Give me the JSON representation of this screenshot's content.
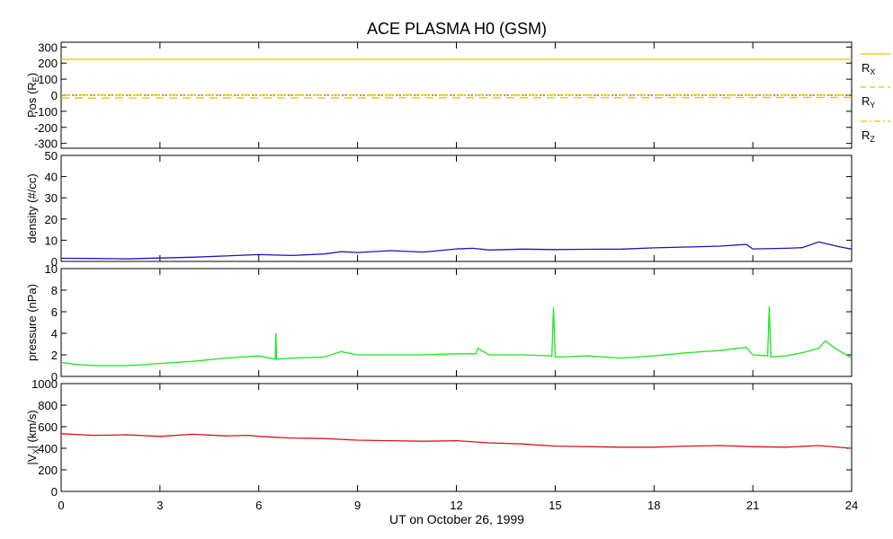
{
  "title": "ACE PLASMA H0 (GSM)",
  "xlabel": "UT on October 26, 1999",
  "x_ticks": [
    "0",
    "3",
    "6",
    "9",
    "12",
    "15",
    "18",
    "21",
    "24"
  ],
  "chart_data": [
    {
      "type": "line",
      "panel": "position",
      "ylabel": "Pos (R",
      "ylabel_sub": "E",
      "ylabel_end": ")",
      "ylim": [
        -330,
        330
      ],
      "xlim": [
        0,
        24
      ],
      "y_ticks": [
        300,
        200,
        100,
        0,
        -100,
        -200,
        -300
      ],
      "zero_line": true,
      "series": [
        {
          "name": "R",
          "name_sub": "X",
          "style": "solid",
          "color": "#e8c000",
          "x": [
            0,
            24
          ],
          "values": [
            224,
            224
          ]
        },
        {
          "name": "R",
          "name_sub": "Y",
          "style": "dashed",
          "color": "#e8c000",
          "x": [
            0,
            24
          ],
          "values": [
            -18,
            -14
          ]
        },
        {
          "name": "R",
          "name_sub": "Z",
          "style": "dashdot",
          "color": "#e8c000",
          "x": [
            0,
            24
          ],
          "values": [
            2,
            2
          ]
        }
      ]
    },
    {
      "type": "line",
      "panel": "density",
      "ylabel": "density (#/cc)",
      "ylim": [
        0,
        50
      ],
      "xlim": [
        0,
        24
      ],
      "y_ticks": [
        0,
        10,
        20,
        30,
        40,
        50
      ],
      "series": [
        {
          "color": "#1a14b8",
          "x": [
            0,
            1,
            2,
            3,
            4,
            5,
            6,
            7,
            8,
            8.5,
            9,
            10,
            11,
            12,
            12.5,
            13,
            14,
            15,
            16,
            17,
            18,
            19,
            20,
            20.8,
            21,
            22,
            22.5,
            23,
            23.3,
            23.6,
            24
          ],
          "values": [
            1.5,
            1.4,
            1.2,
            1.6,
            2.0,
            2.6,
            3.2,
            2.8,
            3.5,
            4.6,
            4.2,
            5.1,
            4.4,
            5.9,
            6.2,
            5.4,
            5.8,
            5.6,
            5.7,
            5.8,
            6.4,
            6.8,
            7.2,
            8.0,
            5.9,
            6.2,
            6.5,
            9.2,
            8.1,
            7.0,
            5.8
          ]
        }
      ]
    },
    {
      "type": "line",
      "panel": "pressure",
      "ylabel": "pressure (nPa)",
      "ylim": [
        0,
        10
      ],
      "xlim": [
        0,
        24
      ],
      "y_ticks": [
        0,
        2,
        4,
        6,
        8,
        10
      ],
      "series": [
        {
          "color": "#1ee61e",
          "x": [
            0,
            0.5,
            1,
            2,
            3,
            4,
            5,
            6,
            6.5,
            6.52,
            6.54,
            7,
            8,
            8.5,
            9,
            10,
            11,
            12,
            12.6,
            12.65,
            13,
            14,
            14.9,
            14.95,
            15,
            15.05,
            15.1,
            16,
            17,
            18,
            19,
            20,
            20.8,
            21,
            21.45,
            21.5,
            21.55,
            22,
            22.5,
            23,
            23.2,
            23.5,
            24
          ],
          "values": [
            1.3,
            1.1,
            1.0,
            1.0,
            1.2,
            1.4,
            1.7,
            1.9,
            1.6,
            4.0,
            1.6,
            1.7,
            1.8,
            2.3,
            2.0,
            2.0,
            2.0,
            2.1,
            2.1,
            2.6,
            2.0,
            2.0,
            1.9,
            6.4,
            1.8,
            1.8,
            1.8,
            1.9,
            1.7,
            1.9,
            2.2,
            2.4,
            2.7,
            2.0,
            1.9,
            6.5,
            1.8,
            1.9,
            2.2,
            2.6,
            3.3,
            2.6,
            1.7
          ]
        }
      ]
    },
    {
      "type": "line",
      "panel": "vx",
      "ylabel": "|V",
      "ylabel_sub": "X",
      "ylabel_end": "| (km/s)",
      "ylim": [
        0,
        1000
      ],
      "xlim": [
        0,
        24
      ],
      "y_ticks": [
        0,
        200,
        400,
        600,
        800,
        1000
      ],
      "series": [
        {
          "color": "#d81414",
          "x": [
            0,
            1,
            2,
            3,
            4,
            5,
            5.7,
            6,
            7,
            8,
            9,
            10,
            11,
            12,
            13,
            14,
            15,
            16,
            17,
            18,
            19,
            20,
            21,
            22,
            23,
            24
          ],
          "values": [
            535,
            520,
            525,
            510,
            530,
            515,
            520,
            510,
            495,
            490,
            475,
            470,
            465,
            470,
            450,
            440,
            420,
            415,
            410,
            410,
            420,
            425,
            415,
            410,
            425,
            400
          ]
        }
      ]
    }
  ]
}
